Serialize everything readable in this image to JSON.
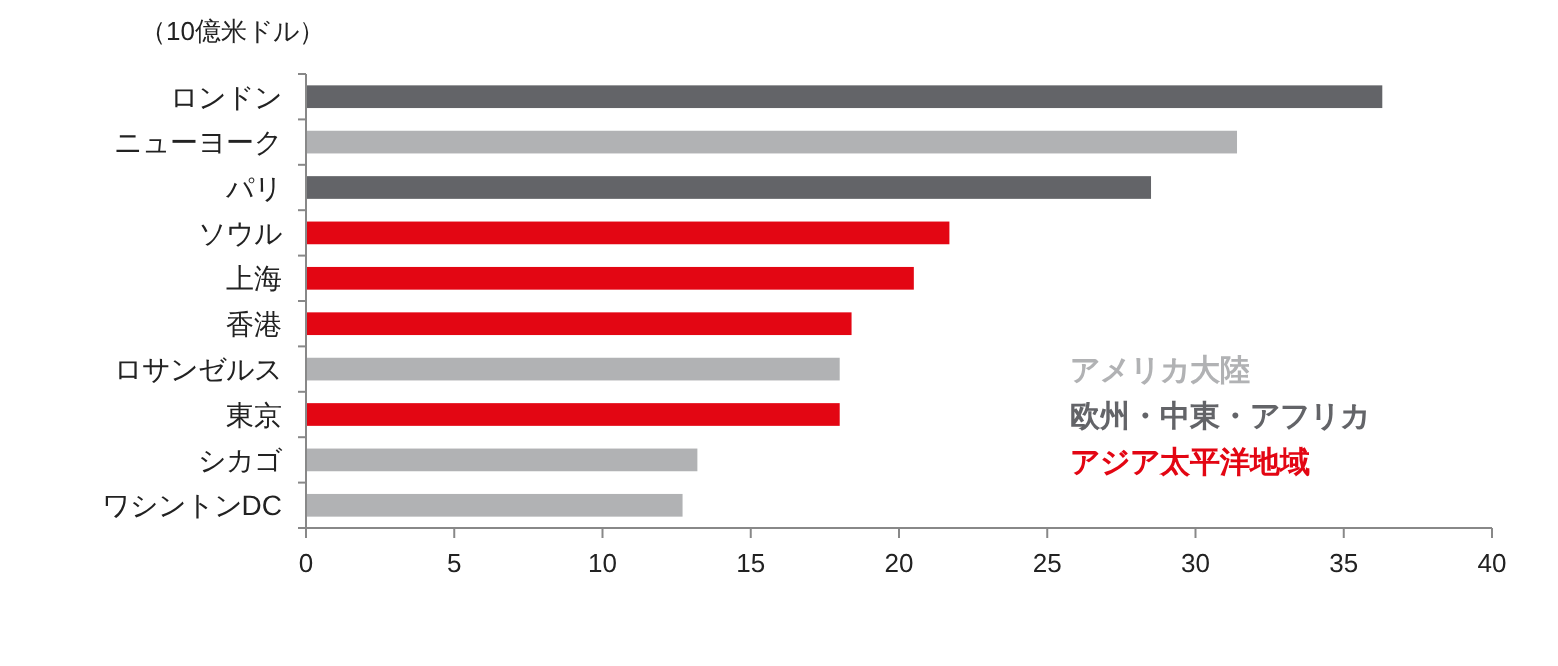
{
  "chart_data": {
    "type": "bar",
    "orientation": "horizontal",
    "title": "（10億米ドル）",
    "categories": [
      "ロンドン",
      "ニューヨーク",
      "パリ",
      "ソウル",
      "上海",
      "香港",
      "ロサンゼルス",
      "東京",
      "シカゴ",
      "ワシントンDC"
    ],
    "series": [
      {
        "name": "アメリカ大陸",
        "color": "#b1b2b4",
        "values": [
          null,
          31.4,
          null,
          null,
          null,
          null,
          18.0,
          null,
          13.2,
          12.7
        ]
      },
      {
        "name": "欧州・中東・アフリカ",
        "color": "#636468",
        "values": [
          36.3,
          null,
          28.5,
          null,
          null,
          null,
          null,
          null,
          null,
          null
        ]
      },
      {
        "name": "アジア太平洋地域",
        "color": "#e30613",
        "values": [
          null,
          null,
          null,
          21.7,
          20.5,
          18.4,
          null,
          18.0,
          null,
          null
        ]
      }
    ],
    "xlim": [
      0,
      40
    ],
    "xticks": [
      0,
      5,
      10,
      15,
      20,
      25,
      30,
      35,
      40
    ],
    "grid": false,
    "legend": "bottom right"
  }
}
